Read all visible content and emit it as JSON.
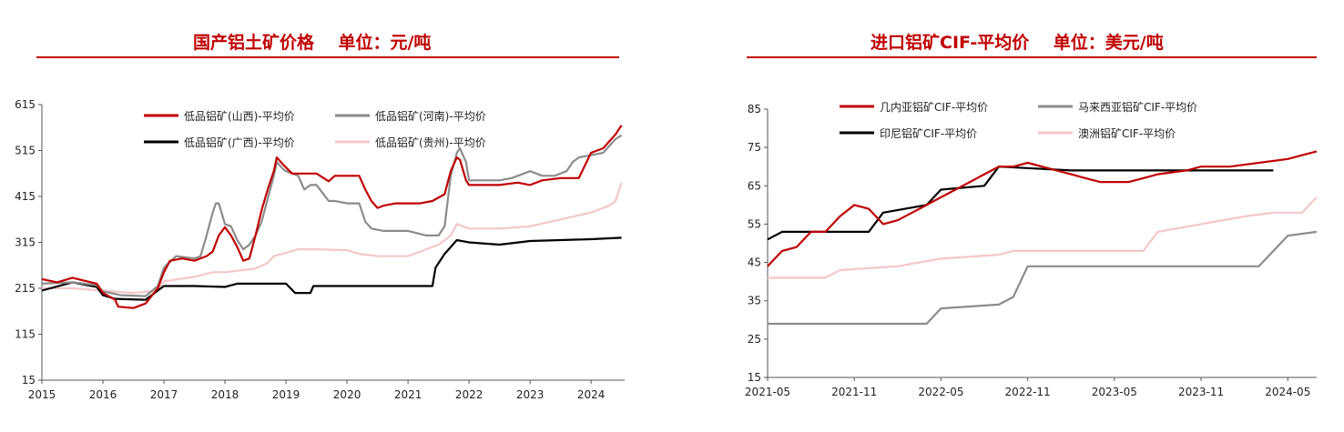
{
  "left_panel": {
    "title": "国产铝土矿价格    单位：元/吨"
  },
  "right_panel": {
    "title": "进口铝矿CIF-平均价    单位：美元/吨"
  },
  "chart_data": [
    {
      "type": "line",
      "title": "国产铝土矿价格    单位：元/吨",
      "ylim": [
        15,
        615
      ],
      "xlim": [
        2015,
        2024.5
      ],
      "y_ticks": [
        15,
        115,
        215,
        315,
        415,
        515,
        615
      ],
      "x_ticks": [
        "2015",
        "2016",
        "2017",
        "2018",
        "2019",
        "2020",
        "2021",
        "2022",
        "2023",
        "2024"
      ],
      "grid": false,
      "legend": "top-left",
      "series": [
        {
          "name": "低品铝矿(山西)-平均价",
          "color": "#c00000",
          "points": [
            [
              2015.0,
              235
            ],
            [
              2015.25,
              228
            ],
            [
              2015.5,
              238
            ],
            [
              2015.9,
              225
            ],
            [
              2016.0,
              205
            ],
            [
              2016.2,
              190
            ],
            [
              2016.25,
              175
            ],
            [
              2016.5,
              172
            ],
            [
              2016.7,
              182
            ],
            [
              2016.9,
              215
            ],
            [
              2017.0,
              250
            ],
            [
              2017.1,
              275
            ],
            [
              2017.3,
              280
            ],
            [
              2017.5,
              275
            ],
            [
              2017.7,
              285
            ],
            [
              2017.8,
              295
            ],
            [
              2017.9,
              330
            ],
            [
              2018.0,
              348
            ],
            [
              2018.1,
              330
            ],
            [
              2018.2,
              305
            ],
            [
              2018.3,
              275
            ],
            [
              2018.4,
              280
            ],
            [
              2018.5,
              330
            ],
            [
              2018.6,
              385
            ],
            [
              2018.7,
              430
            ],
            [
              2018.8,
              470
            ],
            [
              2018.85,
              500
            ],
            [
              2018.95,
              485
            ],
            [
              2019.1,
              465
            ],
            [
              2019.3,
              465
            ],
            [
              2019.5,
              465
            ],
            [
              2019.7,
              448
            ],
            [
              2019.8,
              460
            ],
            [
              2020.0,
              460
            ],
            [
              2020.2,
              460
            ],
            [
              2020.3,
              430
            ],
            [
              2020.4,
              405
            ],
            [
              2020.5,
              390
            ],
            [
              2020.6,
              395
            ],
            [
              2020.8,
              400
            ],
            [
              2021.0,
              400
            ],
            [
              2021.2,
              400
            ],
            [
              2021.4,
              405
            ],
            [
              2021.6,
              420
            ],
            [
              2021.7,
              470
            ],
            [
              2021.8,
              500
            ],
            [
              2021.85,
              495
            ],
            [
              2021.95,
              450
            ],
            [
              2022.0,
              440
            ],
            [
              2022.5,
              440
            ],
            [
              2022.8,
              445
            ],
            [
              2023.0,
              440
            ],
            [
              2023.2,
              450
            ],
            [
              2023.5,
              455
            ],
            [
              2023.8,
              455
            ],
            [
              2024.0,
              510
            ],
            [
              2024.2,
              520
            ],
            [
              2024.3,
              535
            ],
            [
              2024.4,
              550
            ],
            [
              2024.5,
              570
            ]
          ]
        },
        {
          "name": "低品铝矿(河南)-平均价",
          "color": "#8c8c8c",
          "points": [
            [
              2015.0,
              225
            ],
            [
              2015.5,
              228
            ],
            [
              2015.9,
              222
            ],
            [
              2016.0,
              208
            ],
            [
              2016.3,
              200
            ],
            [
              2016.7,
              198
            ],
            [
              2016.9,
              220
            ],
            [
              2017.0,
              260
            ],
            [
              2017.2,
              285
            ],
            [
              2017.5,
              280
            ],
            [
              2017.6,
              285
            ],
            [
              2017.7,
              330
            ],
            [
              2017.8,
              380
            ],
            [
              2017.85,
              400
            ],
            [
              2017.9,
              400
            ],
            [
              2018.0,
              355
            ],
            [
              2018.1,
              350
            ],
            [
              2018.2,
              320
            ],
            [
              2018.3,
              300
            ],
            [
              2018.4,
              310
            ],
            [
              2018.5,
              330
            ],
            [
              2018.6,
              360
            ],
            [
              2018.7,
              410
            ],
            [
              2018.8,
              460
            ],
            [
              2018.85,
              490
            ],
            [
              2018.95,
              475
            ],
            [
              2019.0,
              470
            ],
            [
              2019.2,
              460
            ],
            [
              2019.3,
              430
            ],
            [
              2019.4,
              440
            ],
            [
              2019.5,
              440
            ],
            [
              2019.7,
              405
            ],
            [
              2019.8,
              405
            ],
            [
              2020.0,
              400
            ],
            [
              2020.2,
              400
            ],
            [
              2020.3,
              360
            ],
            [
              2020.4,
              345
            ],
            [
              2020.6,
              340
            ],
            [
              2020.8,
              340
            ],
            [
              2021.0,
              340
            ],
            [
              2021.3,
              330
            ],
            [
              2021.5,
              330
            ],
            [
              2021.6,
              350
            ],
            [
              2021.7,
              460
            ],
            [
              2021.8,
              510
            ],
            [
              2021.85,
              520
            ],
            [
              2021.95,
              490
            ],
            [
              2022.0,
              450
            ],
            [
              2022.5,
              450
            ],
            [
              2022.7,
              455
            ],
            [
              2022.8,
              460
            ],
            [
              2023.0,
              470
            ],
            [
              2023.2,
              460
            ],
            [
              2023.4,
              460
            ],
            [
              2023.6,
              470
            ],
            [
              2023.7,
              490
            ],
            [
              2023.8,
              500
            ],
            [
              2024.0,
              505
            ],
            [
              2024.2,
              510
            ],
            [
              2024.4,
              540
            ],
            [
              2024.5,
              548
            ]
          ]
        },
        {
          "name": "低品铝矿(广西)-平均价",
          "color": "#000000",
          "points": [
            [
              2015.0,
              210
            ],
            [
              2015.5,
              228
            ],
            [
              2015.9,
              218
            ],
            [
              2016.0,
              200
            ],
            [
              2016.2,
              192
            ],
            [
              2016.7,
              190
            ],
            [
              2016.9,
              210
            ],
            [
              2017.0,
              220
            ],
            [
              2017.5,
              220
            ],
            [
              2018.0,
              218
            ],
            [
              2018.2,
              225
            ],
            [
              2018.5,
              225
            ],
            [
              2019.0,
              225
            ],
            [
              2019.15,
              205
            ],
            [
              2019.4,
              205
            ],
            [
              2019.45,
              220
            ],
            [
              2019.8,
              220
            ],
            [
              2020.0,
              220
            ],
            [
              2021.0,
              220
            ],
            [
              2021.4,
              220
            ],
            [
              2021.45,
              260
            ],
            [
              2021.6,
              290
            ],
            [
              2021.7,
              305
            ],
            [
              2021.8,
              320
            ],
            [
              2022.0,
              315
            ],
            [
              2022.5,
              310
            ],
            [
              2023.0,
              318
            ],
            [
              2023.5,
              320
            ],
            [
              2024.0,
              322
            ],
            [
              2024.5,
              325
            ]
          ]
        },
        {
          "name": "低品铝矿(贵州)-平均价",
          "color": "#f4c7c9",
          "points": [
            [
              2015.0,
              215
            ],
            [
              2015.5,
              215
            ],
            [
              2016.0,
              210
            ],
            [
              2016.5,
              205
            ],
            [
              2016.9,
              210
            ],
            [
              2017.0,
              230
            ],
            [
              2017.5,
              240
            ],
            [
              2017.8,
              250
            ],
            [
              2018.0,
              250
            ],
            [
              2018.5,
              258
            ],
            [
              2018.7,
              270
            ],
            [
              2018.8,
              285
            ],
            [
              2019.0,
              292
            ],
            [
              2019.2,
              300
            ],
            [
              2019.5,
              300
            ],
            [
              2020.0,
              298
            ],
            [
              2020.2,
              290
            ],
            [
              2020.5,
              285
            ],
            [
              2021.0,
              285
            ],
            [
              2021.3,
              300
            ],
            [
              2021.5,
              310
            ],
            [
              2021.7,
              330
            ],
            [
              2021.8,
              355
            ],
            [
              2022.0,
              345
            ],
            [
              2022.5,
              345
            ],
            [
              2023.0,
              350
            ],
            [
              2023.5,
              365
            ],
            [
              2024.0,
              380
            ],
            [
              2024.3,
              395
            ],
            [
              2024.4,
              405
            ],
            [
              2024.5,
              445
            ]
          ]
        }
      ]
    },
    {
      "type": "line",
      "title": "进口铝矿CIF-平均价    单位：美元/吨",
      "ylim": [
        15,
        85
      ],
      "xlim": [
        "2021-05",
        "2024-07"
      ],
      "y_ticks": [
        15,
        25,
        35,
        45,
        55,
        65,
        75,
        85
      ],
      "x_ticks": [
        "2021-05",
        "2021-11",
        "2022-05",
        "2022-11",
        "2023-05",
        "2023-11",
        "2024-05"
      ],
      "grid": false,
      "legend": "top-left",
      "series": [
        {
          "name": "几内亚铝矿CIF-平均价",
          "color": "#c00000",
          "points": [
            [
              "2021-05",
              44
            ],
            [
              "2021-06",
              48
            ],
            [
              "2021-07",
              49
            ],
            [
              "2021-08",
              53
            ],
            [
              "2021-09",
              53
            ],
            [
              "2021-10",
              57
            ],
            [
              "2021-11",
              60
            ],
            [
              "2021-12",
              59
            ],
            [
              "2022-01",
              55
            ],
            [
              "2022-02",
              56
            ],
            [
              "2022-03",
              58
            ],
            [
              "2022-04",
              60
            ],
            [
              "2022-05",
              62
            ],
            [
              "2022-06",
              64
            ],
            [
              "2022-07",
              66
            ],
            [
              "2022-08",
              68
            ],
            [
              "2022-09",
              70
            ],
            [
              "2022-10",
              70
            ],
            [
              "2022-11",
              71
            ],
            [
              "2022-12",
              70
            ],
            [
              "2023-01",
              69
            ],
            [
              "2023-02",
              68
            ],
            [
              "2023-03",
              67
            ],
            [
              "2023-04",
              66
            ],
            [
              "2023-06",
              66
            ],
            [
              "2023-07",
              67
            ],
            [
              "2023-08",
              68
            ],
            [
              "2023-10",
              69
            ],
            [
              "2023-11",
              70
            ],
            [
              "2024-01",
              70
            ],
            [
              "2024-03",
              71
            ],
            [
              "2024-05",
              72
            ],
            [
              "2024-07",
              74
            ]
          ]
        },
        {
          "name": "马来西亚铝矿CIF-平均价",
          "color": "#8c8c8c",
          "points": [
            [
              "2021-05",
              29
            ],
            [
              "2021-11",
              29
            ],
            [
              "2022-04",
              29
            ],
            [
              "2022-05",
              33
            ],
            [
              "2022-09",
              34
            ],
            [
              "2022-10",
              36
            ],
            [
              "2022-11",
              44
            ],
            [
              "2023-04",
              44
            ],
            [
              "2024-03",
              44
            ],
            [
              "2024-05",
              52
            ],
            [
              "2024-07",
              53
            ]
          ]
        },
        {
          "name": "印尼铝矿CIF-平均价",
          "color": "#000000",
          "points": [
            [
              "2021-05",
              51
            ],
            [
              "2021-06",
              53
            ],
            [
              "2021-12",
              53
            ],
            [
              "2022-01",
              58
            ],
            [
              "2022-04",
              60
            ],
            [
              "2022-05",
              64
            ],
            [
              "2022-08",
              65
            ],
            [
              "2022-09",
              70
            ],
            [
              "2023-02",
              69
            ],
            [
              "2023-06",
              69
            ],
            [
              "2024-03",
              69
            ],
            [
              "2024-04",
              69
            ]
          ]
        },
        {
          "name": "澳洲铝矿CIF-平均价",
          "color": "#f4c7c9",
          "points": [
            [
              "2021-05",
              41
            ],
            [
              "2021-09",
              41
            ],
            [
              "2021-10",
              43
            ],
            [
              "2022-02",
              44
            ],
            [
              "2022-05",
              46
            ],
            [
              "2022-09",
              47
            ],
            [
              "2022-10",
              48
            ],
            [
              "2023-03",
              48
            ],
            [
              "2023-07",
              48
            ],
            [
              "2023-08",
              53
            ],
            [
              "2023-11",
              55
            ],
            [
              "2024-02",
              57
            ],
            [
              "2024-04",
              58
            ],
            [
              "2024-06",
              58
            ],
            [
              "2024-07",
              62
            ]
          ]
        }
      ]
    }
  ]
}
